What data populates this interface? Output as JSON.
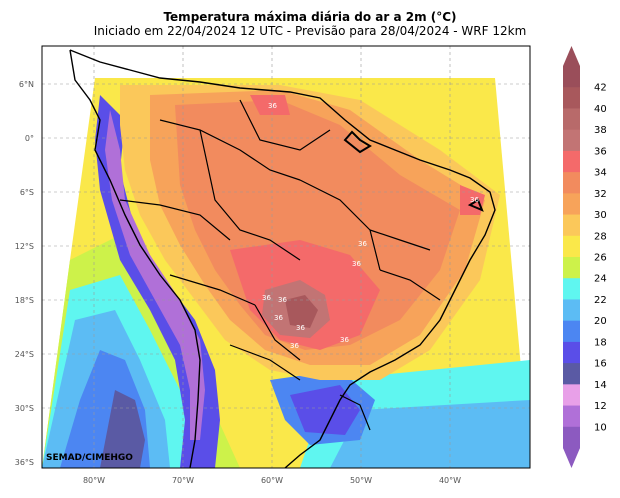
{
  "title": "Temperatura máxima diária do ar a 2m (°C)",
  "subtitle": "Iniciado em 22/04/2024 12 UTC - Previsão para 28/04/2024 - WRF 12km",
  "credit": "SEMAD/CIMEHGO",
  "lat_ticks": [
    "6°N",
    "0°",
    "6°S",
    "12°S",
    "18°S",
    "24°S",
    "30°S",
    "36°S"
  ],
  "lon_ticks": [
    "80°W",
    "70°W",
    "60°W",
    "50°W",
    "40°W"
  ],
  "colorbar": {
    "labels": [
      "42",
      "40",
      "38",
      "36",
      "34",
      "32",
      "30",
      "28",
      "26",
      "24",
      "22",
      "20",
      "18",
      "16",
      "14",
      "12",
      "10"
    ],
    "colors": [
      "#9a4e5a",
      "#a8585c",
      "#b86a6a",
      "#c27474",
      "#f46a6a",
      "#f28b5e",
      "#f7a35a",
      "#fbc85a",
      "#fae84a",
      "#cdf24a",
      "#5ff6f0",
      "#5cbcf4",
      "#4c86f2",
      "#5a4ee8",
      "#5a5aa4",
      "#e8a0e8",
      "#b070d8",
      "#8c5ac0"
    ],
    "top_arrow_color": "#9a4e5a",
    "bottom_arrow_color": "#8c5ac0"
  },
  "map_labels": [
    "36",
    "36",
    "36",
    "36",
    "36",
    "36",
    "36",
    "36",
    "36",
    "36"
  ]
}
